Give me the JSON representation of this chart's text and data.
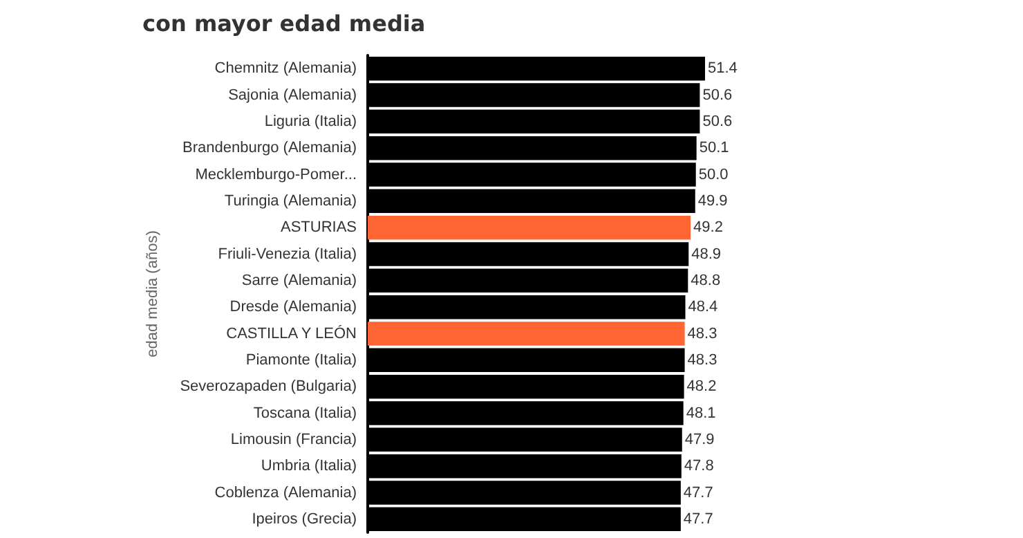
{
  "chart_data": {
    "type": "bar",
    "orientation": "horizontal",
    "title": "con mayor edad media",
    "ylabel": "edad media (años)",
    "value_labels": [
      "51.4",
      "50.6",
      "50.6",
      "50.1",
      "50.0",
      "49.9",
      "49.2",
      "48.9",
      "48.8",
      "48.4",
      "48.3",
      "48.3",
      "48.2",
      "48.1",
      "47.9",
      "47.8",
      "47.7",
      "47.7"
    ],
    "categories": [
      "Chemnitz (Alemania)",
      "Sajonia (Alemania)",
      "Liguria (Italia)",
      "Brandenburgo (Alemania)",
      "Mecklemburgo-Pomer...",
      "Turingia (Alemania)",
      "ASTURIAS",
      "Friuli-Venezia (Italia)",
      "Sarre (Alemania)",
      "Dresde (Alemania)",
      "CASTILLA Y LEÓN",
      "Piamonte (Italia)",
      "Severozapaden (Bulgaria)",
      "Toscana (Italia)",
      "Limousin (Francia)",
      "Umbria (Italia)",
      "Coblenza (Alemania)",
      "Ipeiros (Grecia)"
    ],
    "values": [
      51.4,
      50.6,
      50.6,
      50.1,
      50.0,
      49.9,
      49.2,
      48.9,
      48.8,
      48.4,
      48.3,
      48.3,
      48.2,
      48.1,
      47.9,
      47.8,
      47.7,
      47.7
    ],
    "colors": [
      "#000000",
      "#000000",
      "#000000",
      "#000000",
      "#000000",
      "#000000",
      "#ff6633",
      "#000000",
      "#000000",
      "#000000",
      "#ff6633",
      "#000000",
      "#000000",
      "#000000",
      "#000000",
      "#000000",
      "#000000",
      "#000000"
    ]
  }
}
